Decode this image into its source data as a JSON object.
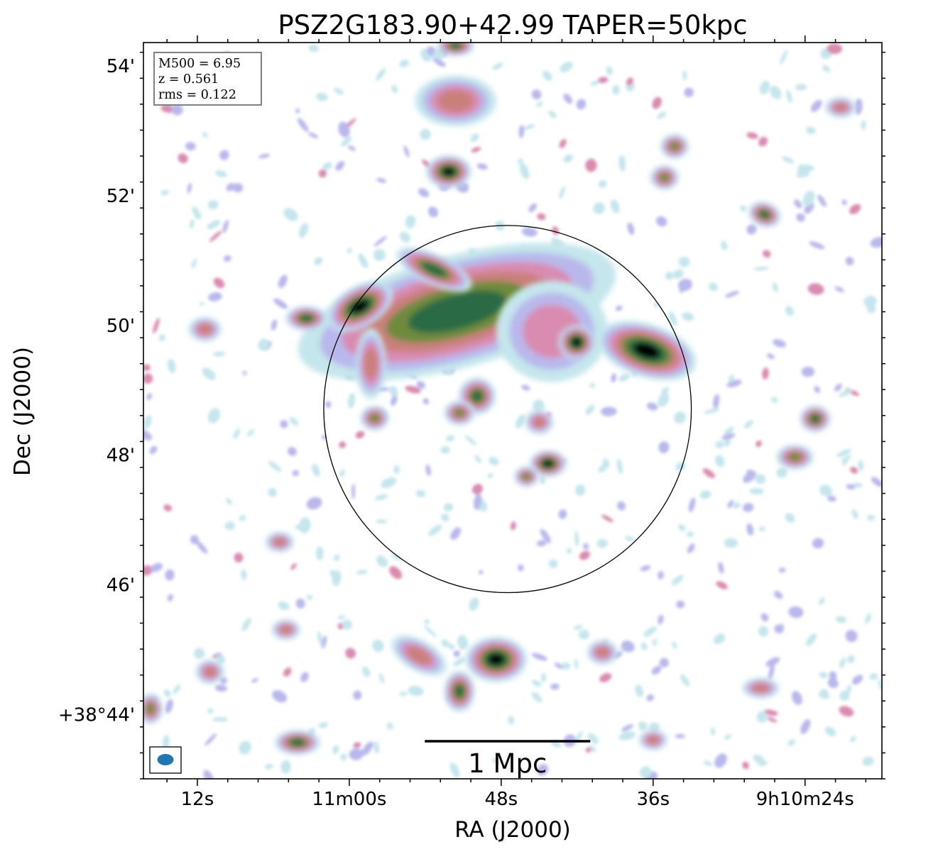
{
  "chart_data": {
    "type": "heatmap",
    "title": "PSZ2G183.90+42.99 TAPER=50kpc",
    "xlabel": "RA (J2000)",
    "ylabel": "Dec (J2000)",
    "x_unit": "RA seconds past 9h10m (axis increases to the left)",
    "y_unit": "Dec arcmin past +38 deg",
    "xlim": [
      76.26,
      17.93
    ],
    "ylim": [
      43.0,
      54.35
    ],
    "x_ticks": [
      {
        "value": 72,
        "label": "12s"
      },
      {
        "value": 60,
        "label": "11m00s"
      },
      {
        "value": 48,
        "label": "48s"
      },
      {
        "value": 36,
        "label": "36s"
      },
      {
        "value": 24,
        "label": "9h10m24s"
      }
    ],
    "y_ticks": [
      {
        "value": 54,
        "label": "54'"
      },
      {
        "value": 52,
        "label": "52'"
      },
      {
        "value": 50,
        "label": "50'"
      },
      {
        "value": 48,
        "label": "48'"
      },
      {
        "value": 46,
        "label": "46'"
      },
      {
        "value": 44,
        "label": "+38°44'"
      }
    ],
    "annotation": {
      "lines": [
        "M500 = 6.95",
        "z = 0.561",
        "rms = 0.122"
      ],
      "location": "top-left"
    },
    "circle": {
      "center_ra": 47.5,
      "center_dec": 48.7,
      "radius_arcmin": 2.83
    },
    "scalebar": {
      "label": "1 Mpc",
      "center_ra": 47.5,
      "dec": 43.58,
      "length_ra_s": 13.07
    },
    "beam": {
      "location": "bottom-left",
      "color": "#1f77b4"
    },
    "colormap": [
      "#ffffff",
      "#c4e6ec",
      "#b9b8ec",
      "#d98bb0",
      "#c9807a",
      "#6e8b3d",
      "#2a6a45",
      "#000000"
    ],
    "sources": [
      {
        "ra": 51.5,
        "dec": 50.2,
        "level": 6,
        "rx": 1.6,
        "ry": 0.55,
        "rot": -15,
        "kind": "diffuse halo"
      },
      {
        "ra": 53.3,
        "dec": 50.85,
        "level": 6,
        "rx": 0.4,
        "ry": 0.15,
        "rot": 25,
        "kind": "compact"
      },
      {
        "ra": 44.0,
        "dec": 49.9,
        "level": 3,
        "rx": 0.55,
        "ry": 0.5,
        "rot": 0,
        "kind": "diffuse"
      },
      {
        "ra": 52.15,
        "dec": 52.36,
        "level": 7,
        "rx": 0.22,
        "ry": 0.16,
        "rot": 0,
        "kind": "compact"
      },
      {
        "ra": 59.16,
        "dec": 50.28,
        "level": 7,
        "rx": 0.35,
        "ry": 0.2,
        "rot": -30,
        "kind": "compact"
      },
      {
        "ra": 36.5,
        "dec": 49.6,
        "level": 7,
        "rx": 0.5,
        "ry": 0.26,
        "rot": 18,
        "kind": "compact"
      },
      {
        "ra": 42.05,
        "dec": 49.73,
        "level": 7,
        "rx": 0.18,
        "ry": 0.17,
        "rot": 0,
        "kind": "compact"
      },
      {
        "ra": 44.3,
        "dec": 47.86,
        "level": 7,
        "rx": 0.18,
        "ry": 0.13,
        "rot": 0,
        "kind": "compact"
      },
      {
        "ra": 48.4,
        "dec": 44.84,
        "level": 7,
        "rx": 0.3,
        "ry": 0.22,
        "rot": 0,
        "kind": "compact"
      },
      {
        "ra": 49.9,
        "dec": 48.9,
        "level": 6,
        "rx": 0.18,
        "ry": 0.18,
        "rot": 0,
        "kind": "compact"
      },
      {
        "ra": 27.2,
        "dec": 51.7,
        "level": 6,
        "rx": 0.16,
        "ry": 0.12,
        "rot": 20,
        "kind": "compact"
      },
      {
        "ra": 63.4,
        "dec": 50.1,
        "level": 6,
        "rx": 0.2,
        "ry": 0.12,
        "rot": 0,
        "kind": "compact"
      },
      {
        "ra": 64.1,
        "dec": 43.56,
        "level": 6,
        "rx": 0.22,
        "ry": 0.12,
        "rot": 0,
        "kind": "compact"
      },
      {
        "ra": 23.2,
        "dec": 48.55,
        "level": 6,
        "rx": 0.15,
        "ry": 0.13,
        "rot": 0,
        "kind": "compact"
      },
      {
        "ra": 51.3,
        "dec": 44.35,
        "level": 6,
        "rx": 0.15,
        "ry": 0.2,
        "rot": 0,
        "kind": "compact"
      },
      {
        "ra": 58.0,
        "dec": 48.56,
        "level": 5,
        "rx": 0.14,
        "ry": 0.12,
        "rot": 0,
        "kind": "compact"
      },
      {
        "ra": 51.3,
        "dec": 48.64,
        "level": 5,
        "rx": 0.15,
        "ry": 0.12,
        "rot": 0,
        "kind": "compact"
      },
      {
        "ra": 58.3,
        "dec": 49.4,
        "level": 4,
        "rx": 0.15,
        "ry": 0.35,
        "rot": 0,
        "kind": "compact"
      },
      {
        "ra": 35.1,
        "dec": 52.27,
        "level": 5,
        "rx": 0.14,
        "ry": 0.12,
        "rot": 0,
        "kind": "compact"
      },
      {
        "ra": 34.3,
        "dec": 52.75,
        "level": 5,
        "rx": 0.14,
        "ry": 0.12,
        "rot": 0,
        "kind": "compact"
      },
      {
        "ra": 24.8,
        "dec": 47.96,
        "level": 5,
        "rx": 0.18,
        "ry": 0.12,
        "rot": 0,
        "kind": "compact"
      },
      {
        "ra": 71.4,
        "dec": 49.93,
        "level": 4,
        "rx": 0.16,
        "ry": 0.12,
        "rot": 0,
        "kind": "compact"
      },
      {
        "ra": 75.7,
        "dec": 44.08,
        "level": 5,
        "rx": 0.12,
        "ry": 0.15,
        "rot": 0,
        "kind": "compact"
      },
      {
        "ra": 51.6,
        "dec": 54.3,
        "level": 6,
        "rx": 0.18,
        "ry": 0.1,
        "rot": 0,
        "kind": "compact"
      },
      {
        "ra": 51.6,
        "dec": 53.45,
        "level": 4,
        "rx": 0.4,
        "ry": 0.25,
        "rot": 0,
        "kind": "diffuse"
      },
      {
        "ra": 46.0,
        "dec": 47.66,
        "level": 5,
        "rx": 0.12,
        "ry": 0.1,
        "rot": 0,
        "kind": "compact"
      },
      {
        "ra": 45.0,
        "dec": 48.5,
        "level": 4,
        "rx": 0.14,
        "ry": 0.12,
        "rot": 0,
        "kind": "compact"
      },
      {
        "ra": 54.5,
        "dec": 44.9,
        "level": 4,
        "rx": 0.3,
        "ry": 0.15,
        "rot": 30,
        "kind": "diffuse"
      },
      {
        "ra": 40.0,
        "dec": 44.95,
        "level": 4,
        "rx": 0.15,
        "ry": 0.12,
        "rot": 0,
        "kind": "compact"
      },
      {
        "ra": 21.2,
        "dec": 53.35,
        "level": 4,
        "rx": 0.15,
        "ry": 0.1,
        "rot": 0,
        "kind": "compact"
      },
      {
        "ra": 36.0,
        "dec": 43.6,
        "level": 4,
        "rx": 0.14,
        "ry": 0.1,
        "rot": 0,
        "kind": "compact"
      },
      {
        "ra": 27.5,
        "dec": 44.4,
        "level": 4,
        "rx": 0.18,
        "ry": 0.1,
        "rot": 0,
        "kind": "compact"
      },
      {
        "ra": 71.0,
        "dec": 44.65,
        "level": 4,
        "rx": 0.14,
        "ry": 0.12,
        "rot": 0,
        "kind": "compact"
      },
      {
        "ra": 65.0,
        "dec": 45.3,
        "level": 4,
        "rx": 0.14,
        "ry": 0.1,
        "rot": 0,
        "kind": "compact"
      },
      {
        "ra": 65.5,
        "dec": 46.65,
        "level": 4,
        "rx": 0.14,
        "ry": 0.1,
        "rot": 0,
        "kind": "compact"
      }
    ]
  }
}
